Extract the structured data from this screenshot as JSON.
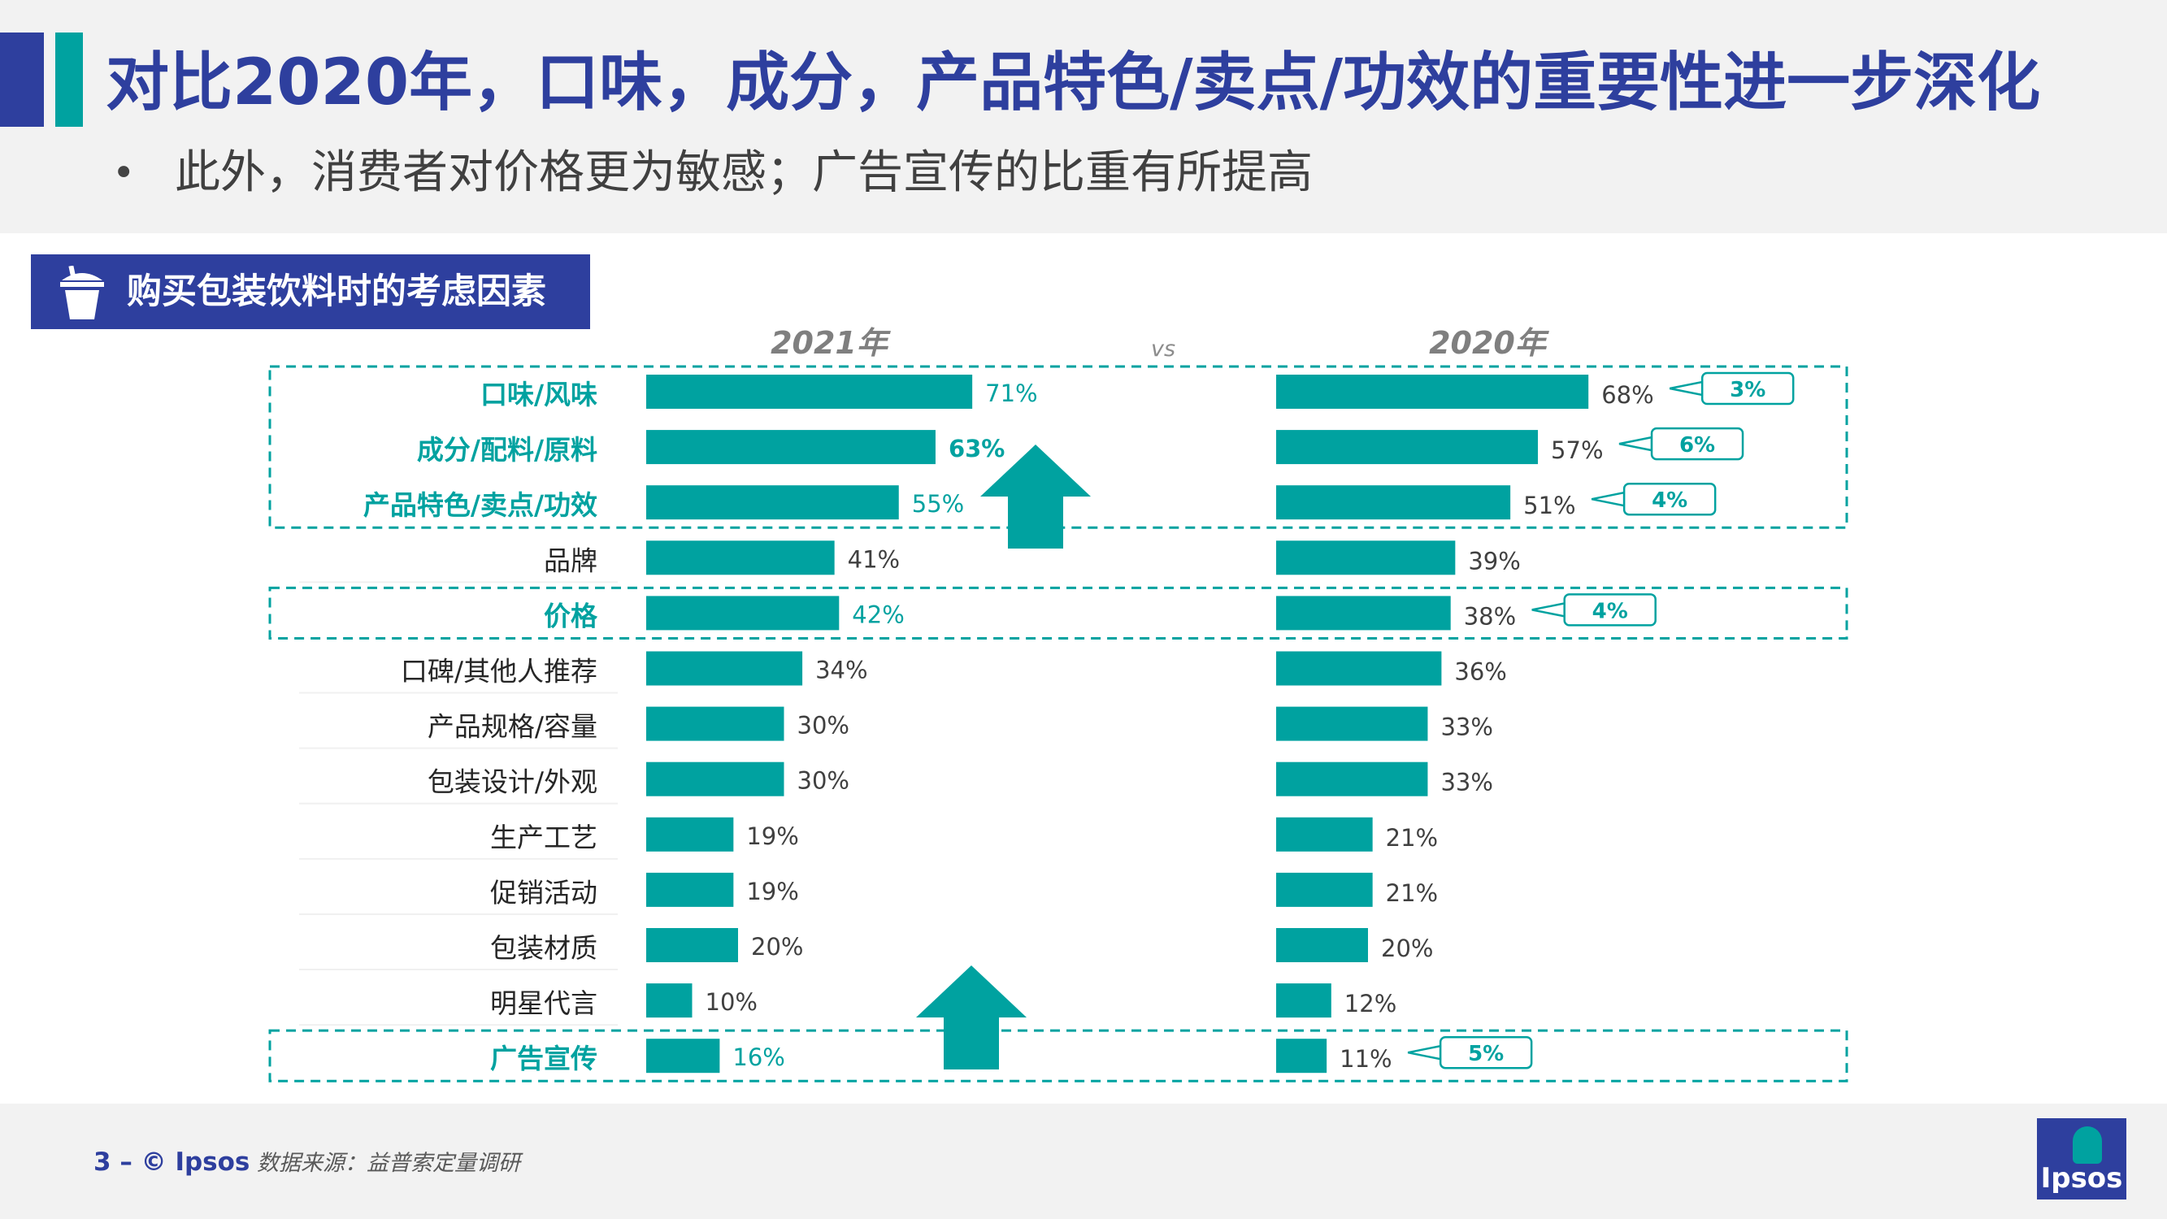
{
  "header": {
    "title": "对比2020年，口味，成分，产品特色/卖点/功效的重要性进一步深化",
    "bullet": "•",
    "subtitle": "此外，消费者对价格更为敏感；广告宣传的比重有所提高"
  },
  "section": {
    "label": "购买包装饮料时的考虑因素",
    "icon": "drink-cup-icon"
  },
  "chart_data": {
    "type": "bar",
    "orientation": "horizontal",
    "comparison_label": "vs",
    "categories": [
      "口味/风味",
      "成分/配料/原料",
      "产品特色/卖点/功效",
      "品牌",
      "价格",
      "口碑/其他人推荐",
      "产品规格/容量",
      "包装设计/外观",
      "生产工艺",
      "促销活动",
      "包装材质",
      "明星代言",
      "广告宣传"
    ],
    "series": [
      {
        "name": "2021年",
        "values": [
          71,
          63,
          55,
          41,
          42,
          34,
          30,
          30,
          19,
          19,
          20,
          10,
          16
        ],
        "labels": [
          "71%",
          "63%",
          "55%",
          "41%",
          "42%",
          "34%",
          "30%",
          "30%",
          "19%",
          "19%",
          "20%",
          "10%",
          "16%"
        ]
      },
      {
        "name": "2020年",
        "values": [
          68,
          57,
          51,
          39,
          38,
          36,
          33,
          33,
          21,
          21,
          20,
          12,
          11
        ],
        "labels": [
          "68%",
          "57%",
          "51%",
          "39%",
          "38%",
          "36%",
          "33%",
          "33%",
          "21%",
          "21%",
          "20%",
          "12%",
          "11%"
        ]
      }
    ],
    "highlighted_categories": [
      "口味/风味",
      "成分/配料/原料",
      "产品特色/卖点/功效",
      "价格",
      "广告宣传"
    ],
    "bold_2021_labels": [
      "63%"
    ],
    "differences": [
      {
        "category": "口味/风味",
        "label": "3%"
      },
      {
        "category": "成分/配料/原料",
        "label": "6%"
      },
      {
        "category": "产品特色/卖点/功效",
        "label": "4%"
      },
      {
        "category": "价格",
        "label": "4%"
      },
      {
        "category": "广告宣传",
        "label": "5%"
      }
    ],
    "up_arrow_icon": "up-arrow-icon",
    "grid": false,
    "colors": {
      "bar": "#00a2a0",
      "highlight_text": "#00a2a0",
      "normal_text": "#262626",
      "value_text": "#404040"
    }
  },
  "footer": {
    "page": "3 –  © Ipsos",
    "source": "数据来源：益普索定量调研",
    "logo_text": "Ipsos"
  },
  "colors": {
    "brand_blue": "#2e3f9e",
    "teal": "#00a2a0",
    "header_bg": "#f2f2f2"
  }
}
